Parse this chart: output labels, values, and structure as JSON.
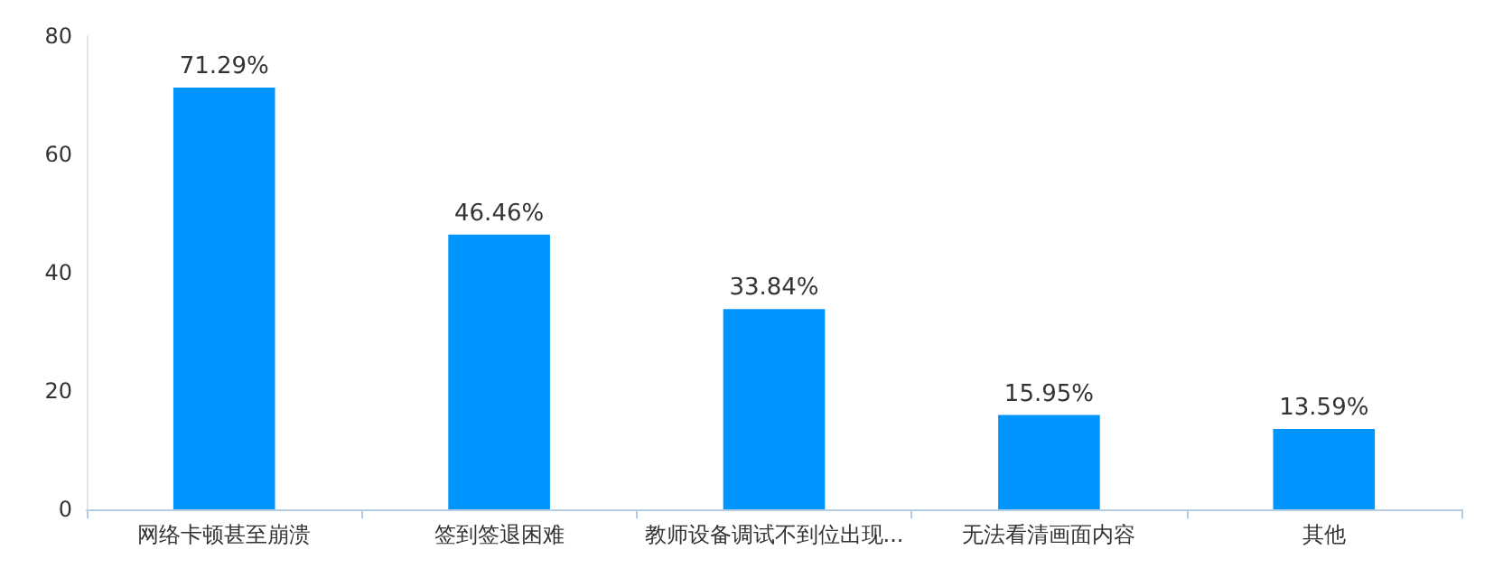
{
  "chart_data": {
    "type": "bar",
    "categories": [
      "网络卡顿甚至崩溃",
      "签到签退困难",
      "教师设备调试不到位出现...",
      "无法看清画面内容",
      "其他"
    ],
    "values": [
      71.29,
      46.46,
      33.84,
      15.95,
      13.59
    ],
    "value_labels": [
      "71.29%",
      "46.46%",
      "33.84%",
      "15.95%",
      "13.59%"
    ],
    "color": "#0095ff",
    "ylim": [
      0,
      80
    ],
    "yticks": [
      0,
      20,
      40,
      60,
      80
    ],
    "grid": false
  }
}
